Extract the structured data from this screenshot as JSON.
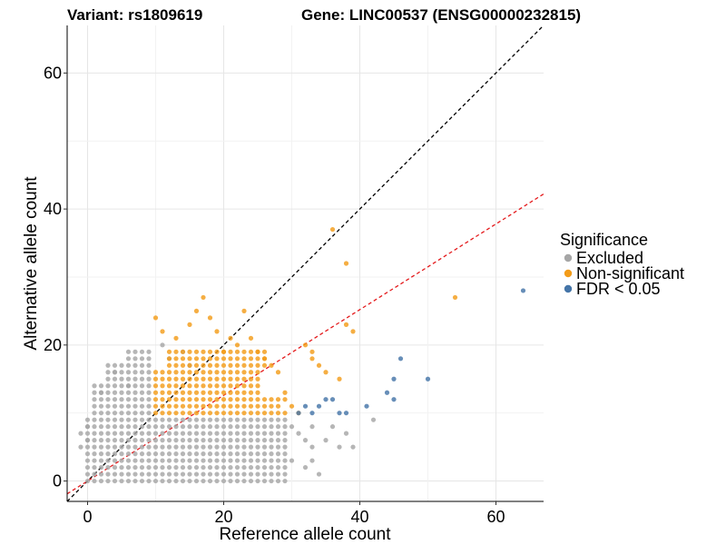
{
  "chart_data": {
    "type": "scatter",
    "title_left": "Variant: rs1809619",
    "title_right": "Gene: LINC00537 (ENSG00000232815)",
    "xlabel": "Reference allele count",
    "ylabel": "Alternative allele count",
    "xlim": [
      -3,
      67
    ],
    "ylim": [
      -3,
      67
    ],
    "xticks": [
      0,
      20,
      40,
      60
    ],
    "yticks": [
      0,
      20,
      40,
      60
    ],
    "x_tick_labels": [
      "0",
      "20",
      "40",
      "60"
    ],
    "y_tick_labels": [
      "0",
      "20",
      "40",
      "60"
    ],
    "grid": true,
    "reference_lines": [
      {
        "name": "identity",
        "color": "#000000",
        "intercept": 0,
        "slope": 1
      },
      {
        "name": "expected-ratio",
        "color": "#e41a1c",
        "intercept": 0,
        "slope": 0.63
      }
    ],
    "legend": {
      "title": "Significance",
      "position": "right",
      "entries": [
        {
          "label": "Excluded",
          "color": "#a6a6a6"
        },
        {
          "label": "Non-significant",
          "color": "#f39c1a"
        },
        {
          "label": "FDR < 0.05",
          "color": "#4575a8"
        }
      ]
    },
    "series": [
      {
        "name": "Excluded",
        "color": "#a6a6a6",
        "regions": [
          {
            "x": [
              0,
              9
            ],
            "y": [
              0,
              9
            ]
          },
          {
            "x": [
              10,
              29
            ],
            "y": [
              0,
              9
            ]
          },
          {
            "x": [
              1,
              9
            ],
            "y": [
              10,
              14
            ]
          },
          {
            "x": [
              3,
              9
            ],
            "y": [
              15,
              17
            ]
          },
          {
            "x": [
              6,
              9
            ],
            "y": [
              18,
              19
            ]
          }
        ],
        "points": [
          [
            -1,
            7
          ],
          [
            -1,
            5
          ],
          [
            0,
            8
          ],
          [
            0,
            6
          ],
          [
            30,
            8
          ],
          [
            31,
            7
          ],
          [
            30,
            3
          ],
          [
            32,
            6
          ],
          [
            33,
            5
          ],
          [
            32,
            2
          ],
          [
            33,
            3
          ],
          [
            34,
            1
          ],
          [
            35,
            6
          ],
          [
            36,
            8
          ],
          [
            37,
            5
          ],
          [
            39,
            5
          ],
          [
            38,
            7
          ],
          [
            42,
            9
          ],
          [
            33,
            8
          ],
          [
            12,
            18
          ],
          [
            14,
            19
          ],
          [
            11,
            20
          ],
          [
            15,
            17
          ],
          [
            4,
            16
          ],
          [
            6,
            14
          ],
          [
            2,
            13
          ]
        ]
      },
      {
        "name": "Non-significant",
        "color": "#f39c1a",
        "regions": [
          {
            "x": [
              10,
              25
            ],
            "y": [
              10,
              16
            ]
          },
          {
            "x": [
              26,
              28
            ],
            "y": [
              10,
              12
            ]
          },
          {
            "x": [
              12,
              26
            ],
            "y": [
              17,
              19
            ]
          }
        ],
        "points": [
          [
            10,
            24
          ],
          [
            11,
            22
          ],
          [
            13,
            21
          ],
          [
            15,
            23
          ],
          [
            17,
            27
          ],
          [
            16,
            25
          ],
          [
            18,
            24
          ],
          [
            19,
            22
          ],
          [
            21,
            21
          ],
          [
            20,
            19
          ],
          [
            22,
            20
          ],
          [
            23,
            25
          ],
          [
            25,
            19
          ],
          [
            26,
            18
          ],
          [
            27,
            17
          ],
          [
            28,
            16
          ],
          [
            29,
            12
          ],
          [
            29,
            13
          ],
          [
            30,
            11
          ],
          [
            31,
            10
          ],
          [
            29,
            10
          ],
          [
            32,
            20
          ],
          [
            33,
            19
          ],
          [
            33,
            18
          ],
          [
            34,
            17
          ],
          [
            35,
            16
          ],
          [
            37,
            15
          ],
          [
            36,
            37
          ],
          [
            38,
            32
          ],
          [
            38,
            23
          ],
          [
            39,
            22
          ],
          [
            54,
            27
          ],
          [
            24,
            21
          ]
        ]
      },
      {
        "name": "FDR < 0.05",
        "color": "#4575a8",
        "points": [
          [
            31,
            10
          ],
          [
            32,
            11
          ],
          [
            33,
            10
          ],
          [
            34,
            11
          ],
          [
            35,
            12
          ],
          [
            36,
            12
          ],
          [
            37,
            10
          ],
          [
            38,
            10
          ],
          [
            41,
            11
          ],
          [
            44,
            13
          ],
          [
            45,
            12
          ],
          [
            45,
            15
          ],
          [
            46,
            18
          ],
          [
            50,
            15
          ],
          [
            64,
            28
          ]
        ]
      }
    ]
  }
}
